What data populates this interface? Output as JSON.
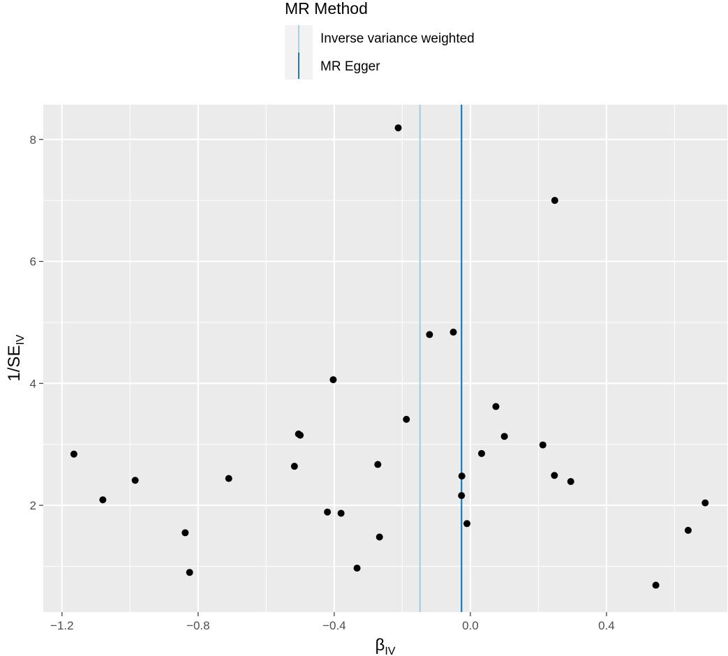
{
  "chart_data": {
    "type": "scatter",
    "title": "",
    "xlabel_main": "β",
    "xlabel_sub": "IV",
    "ylabel_main": "1/SE",
    "ylabel_sub": "IV",
    "xlim": [
      -1.255,
      0.755
    ],
    "ylim": [
      0.25,
      8.57
    ],
    "xticks": [
      -1.2,
      -0.8,
      -0.4,
      0.0,
      0.4
    ],
    "xtick_labels": [
      "−1.2",
      "−0.8",
      "−0.4",
      "0.0",
      "0.4"
    ],
    "yticks": [
      2,
      4,
      6,
      8
    ],
    "ytick_labels": [
      "2",
      "4",
      "6",
      "8"
    ],
    "grid": true,
    "legend": {
      "title": "MR Method",
      "position": "top",
      "entries": [
        {
          "label": "Inverse variance weighted",
          "color": "#a6cee3"
        },
        {
          "label": "MR Egger",
          "color": "#1f78b4"
        }
      ]
    },
    "vlines": [
      {
        "method": "Inverse variance weighted",
        "x": -0.148,
        "color": "#a6cee3"
      },
      {
        "method": "MR Egger",
        "x": -0.026,
        "color": "#1f78b4"
      }
    ],
    "points": [
      {
        "x": -1.165,
        "y": 2.84
      },
      {
        "x": -1.08,
        "y": 2.09
      },
      {
        "x": -0.985,
        "y": 2.41
      },
      {
        "x": -0.838,
        "y": 1.55
      },
      {
        "x": -0.825,
        "y": 0.9
      },
      {
        "x": -0.71,
        "y": 2.44
      },
      {
        "x": -0.517,
        "y": 2.64
      },
      {
        "x": -0.505,
        "y": 3.17
      },
      {
        "x": -0.5,
        "y": 3.15
      },
      {
        "x": -0.42,
        "y": 1.89
      },
      {
        "x": -0.403,
        "y": 4.06
      },
      {
        "x": -0.38,
        "y": 1.87
      },
      {
        "x": -0.333,
        "y": 0.97
      },
      {
        "x": -0.272,
        "y": 2.67
      },
      {
        "x": -0.267,
        "y": 1.48
      },
      {
        "x": -0.212,
        "y": 8.19
      },
      {
        "x": -0.188,
        "y": 3.41
      },
      {
        "x": -0.12,
        "y": 4.8
      },
      {
        "x": -0.05,
        "y": 4.84
      },
      {
        "x": -0.025,
        "y": 2.48
      },
      {
        "x": -0.026,
        "y": 2.16
      },
      {
        "x": -0.01,
        "y": 1.7
      },
      {
        "x": 0.033,
        "y": 2.85
      },
      {
        "x": 0.075,
        "y": 3.62
      },
      {
        "x": 0.1,
        "y": 3.13
      },
      {
        "x": 0.213,
        "y": 2.99
      },
      {
        "x": 0.248,
        "y": 7.0
      },
      {
        "x": 0.247,
        "y": 2.49
      },
      {
        "x": 0.295,
        "y": 2.39
      },
      {
        "x": 0.545,
        "y": 0.69
      },
      {
        "x": 0.64,
        "y": 1.59
      },
      {
        "x": 0.69,
        "y": 2.04
      }
    ]
  }
}
